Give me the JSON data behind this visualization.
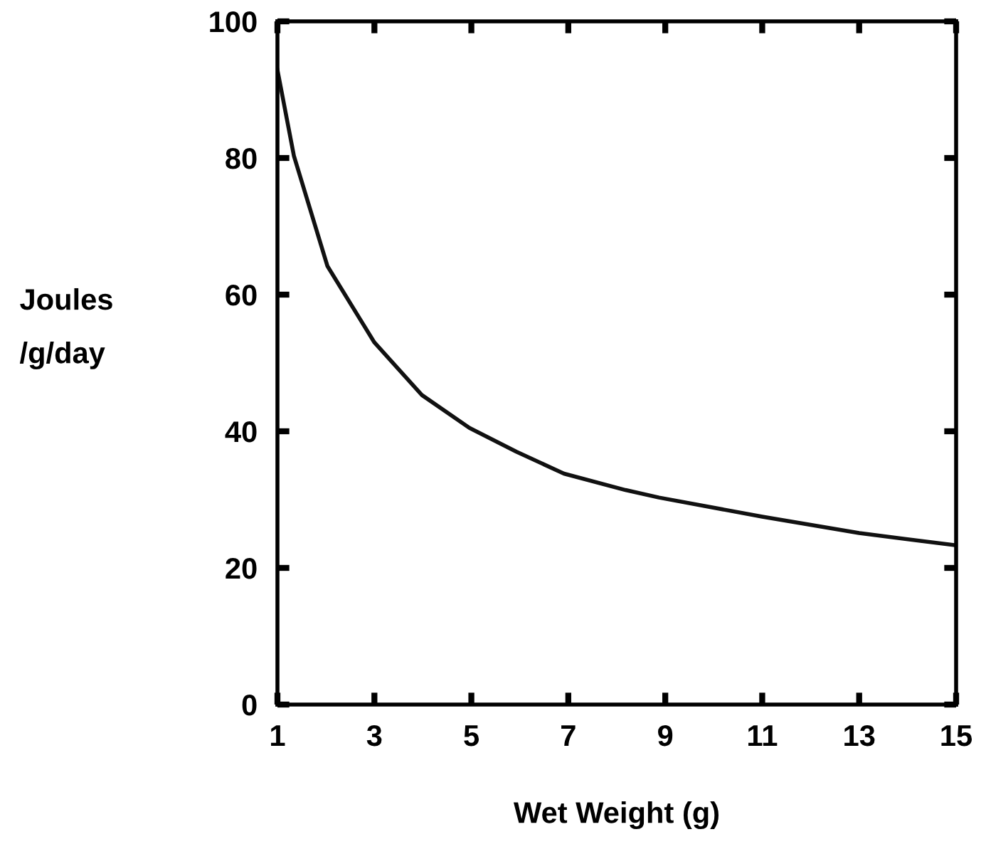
{
  "chart_data": {
    "type": "line",
    "xlabel": "Wet Weight (g)",
    "ylabel": "Joules\n/g/day",
    "x": [
      1,
      1.34,
      2.03,
      3.0,
      3.98,
      4.96,
      5.93,
      6.91,
      8.18,
      8.87,
      11.0,
      13.0,
      15.0
    ],
    "series": [
      {
        "color": "#111111",
        "values": [
          92.9,
          80.3,
          64.2,
          53.0,
          45.3,
          40.5,
          37.0,
          33.8,
          31.4,
          30.3,
          27.5,
          25.1,
          23.3
        ]
      }
    ],
    "xlim": [
      1,
      15
    ],
    "ylim": [
      0,
      100
    ],
    "xticks": [
      1,
      3,
      5,
      7,
      9,
      11,
      13,
      15
    ],
    "yticks": [
      0,
      20,
      40,
      60,
      80,
      100
    ],
    "grid": false,
    "legend": false,
    "marker": "none",
    "line_style": "solid"
  }
}
